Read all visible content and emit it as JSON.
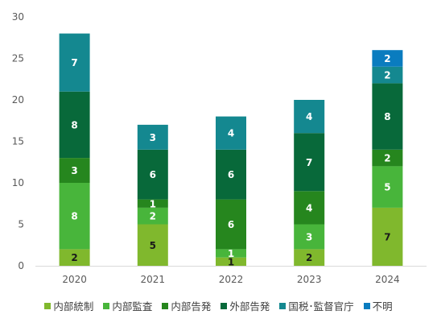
{
  "chart_data": {
    "type": "bar",
    "stacked": true,
    "categories": [
      "2020",
      "2021",
      "2022",
      "2023",
      "2024"
    ],
    "ylim": [
      0,
      30
    ],
    "yticks": [
      0,
      5,
      10,
      15,
      20,
      25,
      30
    ],
    "grid": false,
    "legend_position": "bottom",
    "series": [
      {
        "name": "内部統制",
        "color": "#80b82d",
        "label_color": "#1a1a1a",
        "values": [
          2,
          5,
          1,
          2,
          7
        ]
      },
      {
        "name": "内部監査",
        "color": "#48b53b",
        "label_color": "#ffffff",
        "values": [
          8,
          2,
          1,
          3,
          5
        ]
      },
      {
        "name": "内部告発",
        "color": "#26861e",
        "label_color": "#ffffff",
        "values": [
          3,
          1,
          6,
          4,
          2
        ]
      },
      {
        "name": "外部告発",
        "color": "#08693a",
        "label_color": "#ffffff",
        "values": [
          8,
          6,
          6,
          7,
          8
        ]
      },
      {
        "name": "国税･監督官庁",
        "color": "#148890",
        "label_color": "#ffffff",
        "values": [
          7,
          3,
          4,
          4,
          2
        ]
      },
      {
        "name": "不明",
        "color": "#0a7cbf",
        "label_color": "#ffffff",
        "values": [
          0,
          0,
          0,
          0,
          2
        ]
      }
    ]
  }
}
